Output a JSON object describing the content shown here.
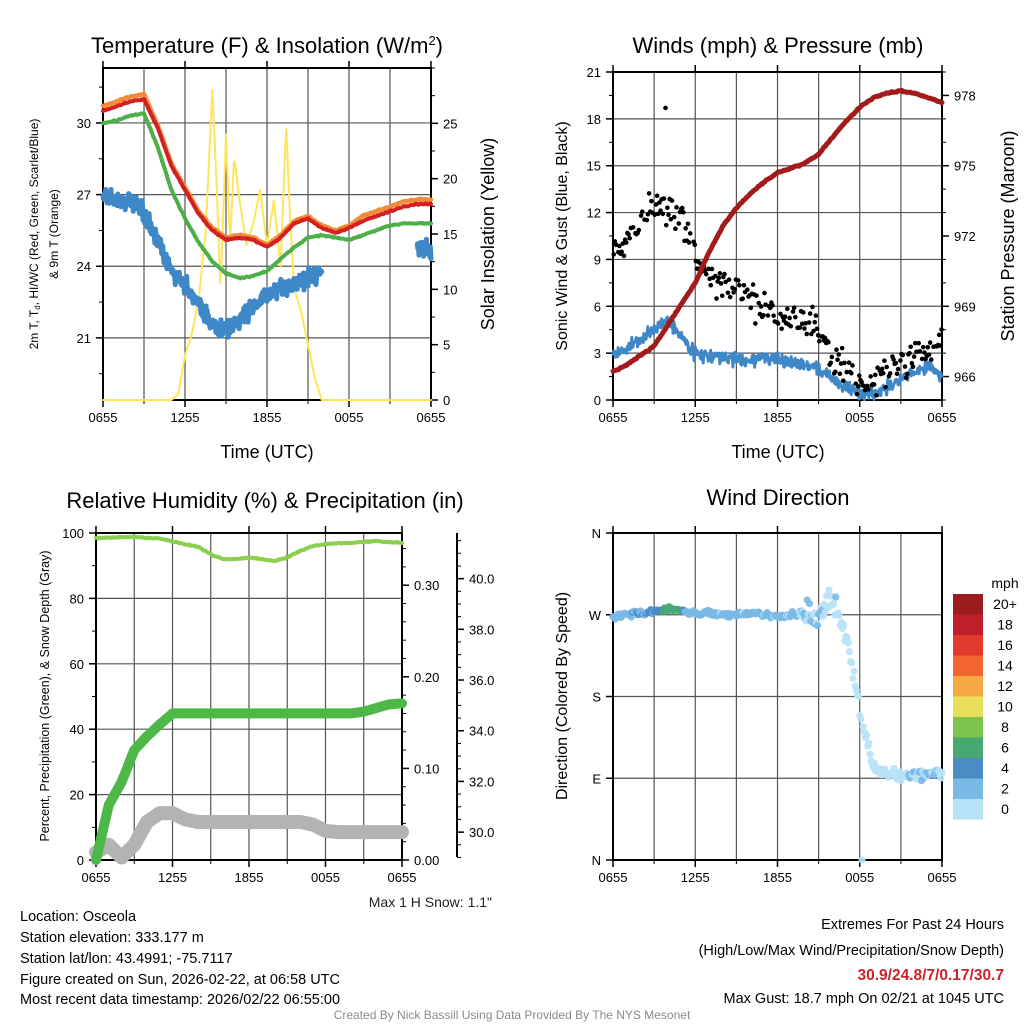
{
  "chart_data": [
    {
      "type": "line",
      "title": "Temperature (F) & Insolation (W/m",
      "title_sup": "2",
      "title_close": ")",
      "xlabel": "Time (UTC)",
      "ylabel_line1": "2m T, T",
      "ylabel_sub": "d",
      "ylabel_line1_rest": ", HI/WC (Red, Green, Scarlet/Blue)",
      "ylabel_line2": "& 9m T (Orange)",
      "y2label": "Solar Insolation (Yellow)",
      "xticks": [
        "0655",
        "1255",
        "1855",
        "0055",
        "0655"
      ],
      "ylim": [
        18.4,
        32.3
      ],
      "yticks": [
        21,
        24,
        27,
        30
      ],
      "y2lim": [
        0,
        30
      ],
      "y2ticks": [
        0,
        5,
        10,
        15,
        20,
        25
      ],
      "x_hours": "0-24 hourly from 0655 UTC",
      "series": [
        {
          "name": "9m T",
          "color": "#f58b3a",
          "values": [
            30.7,
            30.9,
            31.1,
            31.2,
            29.9,
            28.3,
            27.3,
            26.3,
            25.6,
            25.2,
            25.3,
            25.2,
            24.9,
            25.3,
            25.9,
            26.1,
            25.7,
            25.5,
            25.7,
            26.1,
            26.3,
            26.5,
            26.7,
            26.8,
            26.8
          ]
        },
        {
          "name": "2m T",
          "color": "#d42020",
          "values": [
            30.5,
            30.7,
            30.9,
            31.0,
            29.8,
            28.2,
            27.2,
            26.2,
            25.5,
            25.1,
            25.2,
            25.1,
            24.8,
            25.2,
            25.8,
            26.0,
            25.6,
            25.4,
            25.6,
            25.9,
            26.1,
            26.3,
            26.5,
            26.6,
            26.6
          ]
        },
        {
          "name": "HI/WC",
          "color": "#4daf4a",
          "values": [
            30.0,
            30.1,
            30.3,
            30.4,
            29.0,
            27.2,
            26.0,
            25.0,
            24.2,
            23.7,
            23.5,
            23.6,
            23.8,
            24.3,
            24.8,
            25.2,
            25.3,
            25.2,
            25.1,
            25.3,
            25.5,
            25.7,
            25.8,
            25.8,
            25.8
          ]
        },
        {
          "name": "Td",
          "color": "#3f88c8",
          "values": [
            27.0,
            26.8,
            26.7,
            26.2,
            25.0,
            23.8,
            23.2,
            22.5,
            21.5,
            21.3,
            21.8,
            22.3,
            22.8,
            23.0,
            23.3,
            23.5,
            23.8,
            null,
            null,
            null,
            null,
            null,
            null,
            24.9,
            24.6
          ]
        },
        {
          "name": "Solar Insolation",
          "color": "#ffe45c",
          "axis": "y2",
          "x": [
            0,
            5,
            5.5,
            6,
            6.5,
            7,
            7.5,
            8,
            8.3,
            8.6,
            9,
            9.3,
            9.6,
            10,
            10.5,
            11,
            11.5,
            12,
            12.5,
            13,
            13.4,
            13.7,
            14,
            14.5,
            15,
            15.5,
            16,
            24
          ],
          "values": [
            0,
            0,
            0.5,
            4,
            6,
            9,
            15,
            28,
            20,
            10,
            24,
            14,
            22,
            18,
            14,
            16,
            19,
            14,
            18,
            12,
            25,
            16,
            10,
            8,
            5,
            2,
            0,
            0
          ]
        }
      ]
    },
    {
      "type": "line",
      "title": "Winds (mph) & Pressure (mb)",
      "xlabel": "Time (UTC)",
      "ylabel": "Sonic Wind & Gust (Blue, Black)",
      "y2label": "Station Pressure (Maroon)",
      "xticks": [
        "0655",
        "1255",
        "1855",
        "0055",
        "0655"
      ],
      "ylim": [
        0,
        21
      ],
      "yticks": [
        0,
        3,
        6,
        9,
        12,
        15,
        18,
        21
      ],
      "y2lim": [
        965,
        979
      ],
      "y2ticks": [
        966,
        969,
        972,
        975,
        978
      ],
      "series": [
        {
          "name": "Sonic Wind",
          "color": "#3f88c8",
          "values": [
            3.0,
            3.3,
            3.8,
            4.5,
            5.2,
            4.0,
            3.0,
            2.8,
            2.7,
            2.6,
            2.5,
            2.8,
            2.5,
            2.4,
            2.3,
            2.0,
            1.4,
            0.8,
            0.4,
            0.5,
            0.8,
            1.3,
            1.8,
            2.2,
            1.6
          ]
        },
        {
          "name": "Gust",
          "color": "#000000",
          "type": "scatter",
          "values": [
            9.5,
            10,
            11.5,
            12.5,
            12.5,
            11.5,
            9,
            8.3,
            7.5,
            7,
            6.5,
            6,
            5.5,
            5.5,
            5,
            4.2,
            2.8,
            2,
            1.2,
            1.5,
            1.8,
            2.2,
            2.8,
            3.3,
            3.6
          ],
          "max_point": [
            3.83,
            18.7
          ]
        },
        {
          "name": "Station Pressure",
          "color": "#a31a1a",
          "axis": "y2",
          "values": [
            966.2,
            966.5,
            966.9,
            967.3,
            968.2,
            969.1,
            970.0,
            971.3,
            972.4,
            973.2,
            973.8,
            974.3,
            974.7,
            974.9,
            975.1,
            975.5,
            976.2,
            976.9,
            977.5,
            977.9,
            978.1,
            978.2,
            978.1,
            977.9,
            977.7
          ]
        }
      ]
    },
    {
      "type": "line",
      "title": "Relative Humidity (%) & Precipitation (in)",
      "ylabel": "Percent, Precipitation (Green), & Snow Depth (Gray)",
      "xticks": [
        "0655",
        "1255",
        "1855",
        "0055",
        "0655"
      ],
      "ylim": [
        0,
        100
      ],
      "yticks": [
        0,
        20,
        40,
        60,
        80,
        100
      ],
      "y2lim": [
        0,
        0.357
      ],
      "y2ticks": [
        "0.00",
        "0.10",
        "0.20",
        "0.30"
      ],
      "y3lim": [
        28.9,
        41.8
      ],
      "y3ticks": [
        "30.0",
        "32.0",
        "34.0",
        "36.0",
        "38.0",
        "40.0"
      ],
      "annotation": "Max 1 H Snow: 1.1\"",
      "series": [
        {
          "name": "Relative Humidity",
          "color": "#8ccf50",
          "values": [
            98.5,
            98.6,
            98.7,
            98.8,
            98.5,
            98.3,
            97.5,
            96.5,
            95.8,
            93.5,
            92,
            92,
            92.5,
            92,
            91.5,
            92.5,
            94.5,
            96,
            96.6,
            96.9,
            97,
            97.3,
            97.5,
            97.2,
            97
          ]
        },
        {
          "name": "Precipitation",
          "color": "#4db848",
          "axis": "y2",
          "values": [
            0,
            0.06,
            0.085,
            0.12,
            0.135,
            0.148,
            0.16,
            0.16,
            0.16,
            0.16,
            0.16,
            0.16,
            0.16,
            0.16,
            0.16,
            0.16,
            0.16,
            0.16,
            0.16,
            0.16,
            0.16,
            0.162,
            0.166,
            0.17,
            0.171
          ]
        },
        {
          "name": "Snow Depth",
          "color": "#b3b3b3",
          "axis": "y3",
          "values": [
            29.2,
            29.5,
            29.0,
            29.5,
            30.4,
            30.75,
            30.75,
            30.5,
            30.4,
            30.4,
            30.4,
            30.4,
            30.4,
            30.4,
            30.4,
            30.4,
            30.4,
            30.3,
            30.05,
            30.0,
            30.0,
            30.0,
            30.0,
            30.0,
            30.0
          ]
        }
      ]
    },
    {
      "type": "scatter",
      "title": "Wind Direction",
      "ylabel": "Direction (Colored By Speed)",
      "xticks": [
        "0655",
        "1255",
        "1855",
        "0055",
        "0655"
      ],
      "ylim": [
        0,
        360
      ],
      "yticks": [
        {
          "v": 0,
          "label": "N"
        },
        {
          "v": 90,
          "label": "E"
        },
        {
          "v": 180,
          "label": "S"
        },
        {
          "v": 270,
          "label": "W"
        },
        {
          "v": 360,
          "label": "N"
        }
      ],
      "direction_values": [
        268,
        270,
        272,
        274,
        276,
        274,
        272,
        272,
        270,
        270,
        272,
        270,
        268,
        270,
        272,
        275,
        285,
        250,
        160,
        100,
        95,
        92,
        93,
        95,
        96
      ],
      "colorbar": {
        "unit": "mph",
        "labels": [
          "20+",
          "18",
          "16",
          "14",
          "12",
          "10",
          "8",
          "6",
          "4",
          "2",
          "0"
        ],
        "colors": [
          "#9b1b1e",
          "#c0202a",
          "#e03a2c",
          "#f26530",
          "#f8a844",
          "#e8e05a",
          "#7cc350",
          "#48a872",
          "#4a8cc6",
          "#7ab8e6",
          "#b8e2f8"
        ]
      }
    }
  ],
  "info": {
    "location": "Location: Osceola",
    "elevation": "Station elevation: 333.177 m",
    "latlon": "Station lat/lon: 43.4991; -75.7117",
    "created": "Figure created on Sun, 2026-02-22, at 06:58 UTC",
    "recent": "Most recent data timestamp: 2026/02/22 06:55:00",
    "extremes_title": "Extremes For Past 24 Hours",
    "extremes_sub": "(High/Low/Max Wind/Precipitation/Snow Depth)",
    "extremes_values": "30.9/24.8/7/0.17/30.7",
    "max_gust": "Max Gust: 18.7 mph On 02/21 at 1045 UTC",
    "credit": "Created By Nick Bassill Using Data Provided By The NYS Mesonet",
    "extremes_color": "#cc2229"
  }
}
